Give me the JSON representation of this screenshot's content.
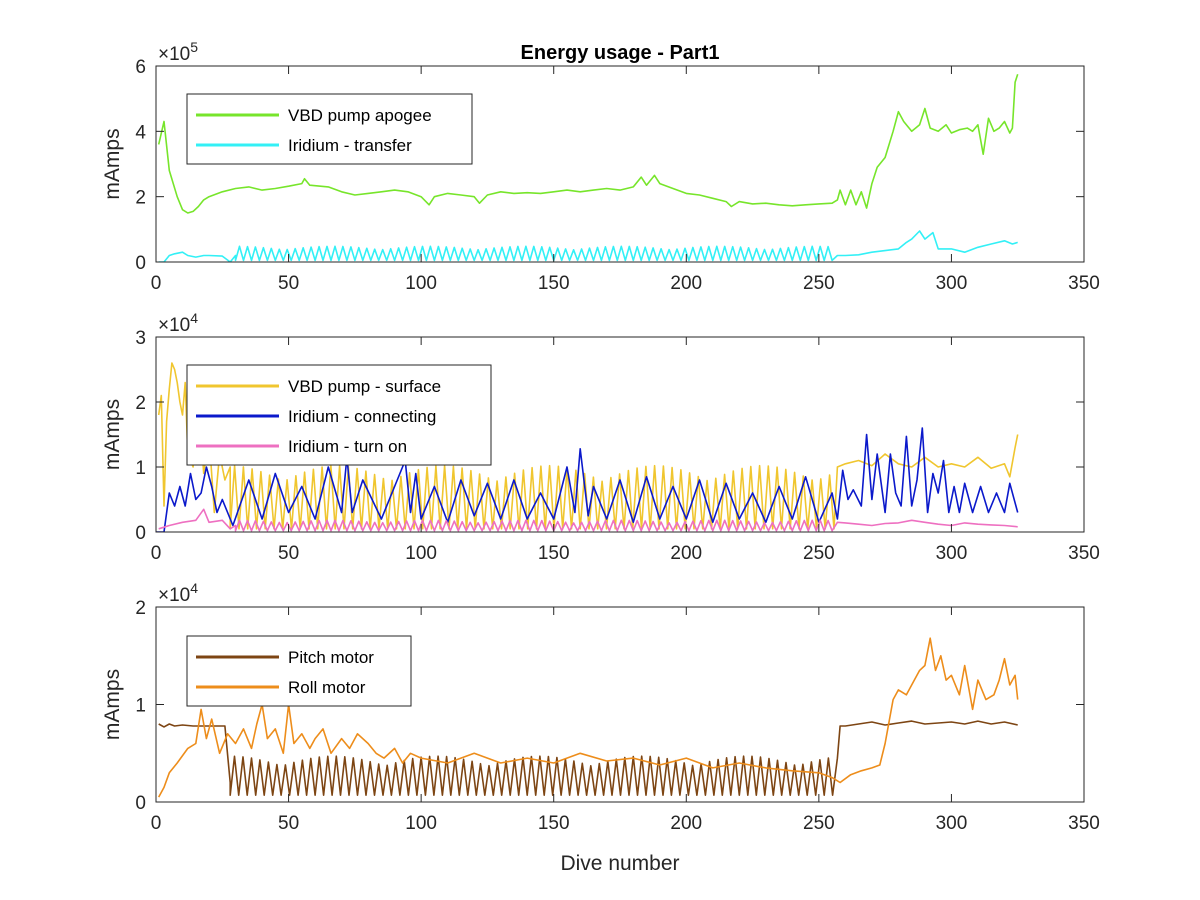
{
  "figure_title": "Energy usage - Part1",
  "chart_data": [
    {
      "type": "line",
      "id": "panel1",
      "title": "Energy usage - Part1",
      "xlabel": "",
      "ylabel": "mAmps",
      "xlim": [
        0,
        350
      ],
      "ylim": [
        0,
        600000
      ],
      "xticks": [
        0,
        50,
        100,
        150,
        200,
        250,
        300,
        350
      ],
      "yticks": [
        0,
        200000,
        400000,
        600000
      ],
      "ytick_labels": [
        "0",
        "2",
        "4",
        "6"
      ],
      "exponent_base": "×10",
      "exponent_power": "5",
      "legend_position": "top-left",
      "series": [
        {
          "name": "VBD pump apogee",
          "color": "#77e52b",
          "x": [
            1,
            3,
            5,
            8,
            10,
            12,
            14,
            16,
            18,
            20,
            25,
            30,
            35,
            40,
            45,
            50,
            55,
            56,
            58,
            65,
            70,
            75,
            80,
            85,
            90,
            95,
            100,
            103,
            105,
            110,
            115,
            120,
            122,
            125,
            130,
            135,
            140,
            145,
            150,
            155,
            160,
            165,
            170,
            175,
            180,
            183,
            185,
            188,
            190,
            195,
            200,
            205,
            210,
            215,
            217,
            220,
            225,
            230,
            235,
            240,
            245,
            250,
            255,
            257,
            258,
            260,
            262,
            264,
            266,
            268,
            270,
            272,
            275,
            278,
            280,
            282,
            285,
            288,
            290,
            292,
            295,
            298,
            300,
            303,
            306,
            308,
            310,
            312,
            314,
            316,
            318,
            320,
            322,
            323,
            324,
            325
          ],
          "y": [
            360000,
            430000,
            280000,
            200000,
            160000,
            150000,
            155000,
            170000,
            190000,
            200000,
            215000,
            225000,
            230000,
            220000,
            225000,
            232000,
            240000,
            255000,
            235000,
            230000,
            215000,
            205000,
            210000,
            215000,
            220000,
            215000,
            200000,
            175000,
            200000,
            210000,
            205000,
            200000,
            180000,
            205000,
            215000,
            210000,
            212000,
            210000,
            215000,
            220000,
            215000,
            220000,
            225000,
            220000,
            230000,
            260000,
            235000,
            265000,
            240000,
            225000,
            210000,
            205000,
            195000,
            185000,
            170000,
            185000,
            178000,
            180000,
            175000,
            172000,
            175000,
            178000,
            180000,
            190000,
            220000,
            175000,
            220000,
            175000,
            215000,
            165000,
            240000,
            290000,
            320000,
            400000,
            460000,
            430000,
            400000,
            420000,
            470000,
            410000,
            400000,
            420000,
            395000,
            405000,
            410000,
            400000,
            420000,
            330000,
            440000,
            400000,
            410000,
            430000,
            395000,
            410000,
            550000,
            575000
          ]
        },
        {
          "name": "Iridium - transfer",
          "color": "#33f0f6",
          "x": [
            1,
            3,
            5,
            7,
            10,
            12,
            15,
            18,
            20,
            25,
            28,
            30,
            257,
            260,
            265,
            270,
            275,
            280,
            283,
            285,
            288,
            290,
            293,
            295,
            300,
            305,
            310,
            315,
            320,
            323,
            325
          ],
          "y": [
            0,
            0,
            20000,
            25000,
            30000,
            20000,
            15000,
            20000,
            20000,
            18000,
            0,
            20000,
            20000,
            20000,
            22000,
            30000,
            35000,
            40000,
            60000,
            70000,
            95000,
            70000,
            90000,
            40000,
            40000,
            30000,
            45000,
            55000,
            65000,
            55000,
            60000
          ],
          "oscillation": {
            "start": 30,
            "end": 256,
            "period": 3,
            "low": 5000,
            "high": 48000
          }
        }
      ]
    },
    {
      "type": "line",
      "id": "panel2",
      "title": "",
      "xlabel": "",
      "ylabel": "mAmps",
      "xlim": [
        0,
        350
      ],
      "ylim": [
        0,
        30000
      ],
      "xticks": [
        0,
        50,
        100,
        150,
        200,
        250,
        300,
        350
      ],
      "yticks": [
        0,
        10000,
        20000,
        30000
      ],
      "ytick_labels": [
        "0",
        "1",
        "2",
        "3"
      ],
      "exponent_base": "×10",
      "exponent_power": "4",
      "legend_position": "top-left",
      "series": [
        {
          "name": "VBD pump - surface",
          "color": "#f0c62f",
          "x": [
            1,
            2,
            3,
            4,
            5,
            6,
            7,
            8,
            9,
            10,
            11,
            12,
            14,
            16,
            18,
            20,
            22,
            24,
            26,
            28,
            257,
            260,
            265,
            270,
            275,
            280,
            285,
            290,
            295,
            300,
            305,
            310,
            315,
            320,
            322,
            324,
            325
          ],
          "y": [
            18000,
            21000,
            4000,
            17000,
            22000,
            26000,
            25000,
            23000,
            20000,
            18000,
            23000,
            12000,
            10000,
            21000,
            9000,
            15000,
            3000,
            12000,
            8000,
            10000,
            10000,
            10500,
            11000,
            10200,
            12000,
            10500,
            10000,
            11500,
            10000,
            10500,
            10000,
            11500,
            9800,
            10500,
            8500,
            13000,
            15000
          ],
          "oscillation": {
            "start": 28,
            "end": 256,
            "period": 3.3,
            "low": 500,
            "high": 10200
          }
        },
        {
          "name": "Iridium - connecting",
          "color": "#0b19cb",
          "x": [
            0,
            3,
            5,
            7,
            9,
            11,
            13,
            15,
            17,
            19,
            21,
            23,
            25,
            27,
            29,
            35,
            40,
            45,
            50,
            55,
            60,
            65,
            70,
            72,
            74,
            78,
            85,
            90,
            94,
            96,
            98,
            100,
            105,
            110,
            115,
            120,
            125,
            130,
            135,
            140,
            145,
            150,
            155,
            158,
            160,
            163,
            165,
            170,
            175,
            180,
            185,
            190,
            195,
            200,
            205,
            210,
            215,
            220,
            225,
            230,
            235,
            240,
            245,
            250,
            255,
            257,
            259,
            261,
            263,
            266,
            268,
            270,
            272,
            275,
            277,
            279,
            281,
            283,
            285,
            287,
            289,
            291,
            293,
            295,
            297,
            299,
            301,
            303,
            305,
            308,
            311,
            314,
            317,
            320,
            322,
            325
          ],
          "y": [
            0,
            0,
            6000,
            4000,
            7000,
            4000,
            9000,
            5000,
            6000,
            10000,
            7000,
            3000,
            5000,
            3000,
            1000,
            8000,
            2000,
            9000,
            3000,
            7000,
            2000,
            10000,
            3000,
            11500,
            3000,
            8000,
            2000,
            7000,
            11000,
            3000,
            9000,
            2000,
            7000,
            1500,
            8000,
            2500,
            7500,
            2000,
            8000,
            2000,
            6000,
            2000,
            10000,
            3000,
            12800,
            2500,
            7000,
            2000,
            8000,
            1500,
            8500,
            2000,
            7000,
            2000,
            8000,
            1500,
            7500,
            2000,
            6000,
            1500,
            7000,
            2000,
            8500,
            1500,
            6000,
            2000,
            9500,
            5000,
            6500,
            4000,
            15000,
            5000,
            12000,
            3000,
            12000,
            6000,
            4000,
            14700,
            4000,
            8000,
            16000,
            3000,
            9000,
            6000,
            11000,
            3000,
            7000,
            3000,
            7500,
            3000,
            7000,
            3000,
            6000,
            3000,
            7500,
            3000
          ]
        },
        {
          "name": "Iridium - turn on",
          "color": "#ee70c1",
          "x": [
            1,
            5,
            10,
            15,
            18,
            20,
            25,
            28,
            30,
            257,
            260,
            265,
            270,
            275,
            280,
            285,
            290,
            295,
            300,
            305,
            310,
            315,
            320,
            325
          ],
          "y": [
            500,
            1000,
            1500,
            1800,
            3500,
            1500,
            1800,
            500,
            1000,
            1500,
            1400,
            1200,
            1000,
            1300,
            1400,
            1800,
            1500,
            1200,
            1000,
            1400,
            1200,
            1100,
            1000,
            800
          ],
          "oscillation": {
            "start": 30,
            "end": 256,
            "period": 3,
            "low": 200,
            "high": 1800
          }
        }
      ]
    },
    {
      "type": "line",
      "id": "panel3",
      "title": "",
      "xlabel": "Dive number",
      "ylabel": "mAmps",
      "xlim": [
        0,
        350
      ],
      "ylim": [
        0,
        20000
      ],
      "xticks": [
        0,
        50,
        100,
        150,
        200,
        250,
        300,
        350
      ],
      "yticks": [
        0,
        10000,
        20000
      ],
      "ytick_labels": [
        "0",
        "1",
        "2"
      ],
      "exponent_base": "×10",
      "exponent_power": "4",
      "legend_position": "top-left",
      "series": [
        {
          "name": "Pitch motor",
          "color": "#7d4513",
          "x": [
            1,
            3,
            5,
            7,
            10,
            14,
            18,
            22,
            26,
            28,
            257,
            258,
            260,
            265,
            270,
            275,
            280,
            285,
            290,
            295,
            300,
            305,
            310,
            315,
            320,
            325
          ],
          "y": [
            8000,
            7700,
            8000,
            7800,
            7900,
            7800,
            7800,
            7800,
            7800,
            2000,
            4500,
            7800,
            7800,
            8000,
            8200,
            7900,
            8100,
            8300,
            8000,
            8100,
            8200,
            8000,
            8300,
            8000,
            8200,
            7900
          ],
          "oscillation": {
            "start": 28,
            "end": 256,
            "period": 3.2,
            "low": 700,
            "high": 4700
          }
        },
        {
          "name": "Roll motor",
          "color": "#ed8d1b",
          "x": [
            1,
            3,
            5,
            8,
            12,
            15,
            17,
            19,
            21,
            24,
            27,
            30,
            33,
            36,
            38,
            40,
            42,
            45,
            48,
            50,
            52,
            55,
            58,
            60,
            63,
            66,
            70,
            73,
            76,
            80,
            83,
            86,
            90,
            93,
            96,
            100,
            110,
            120,
            130,
            140,
            150,
            160,
            170,
            180,
            190,
            200,
            210,
            220,
            230,
            240,
            250,
            255,
            258,
            262,
            266,
            270,
            273,
            275,
            278,
            280,
            283,
            286,
            288,
            290,
            292,
            294,
            296,
            298,
            300,
            303,
            305,
            308,
            310,
            313,
            316,
            318,
            320,
            322,
            324,
            325
          ],
          "y": [
            500,
            1500,
            3000,
            4000,
            5500,
            6000,
            9500,
            6500,
            8500,
            5000,
            7000,
            6000,
            7500,
            5500,
            8000,
            10000,
            6500,
            7500,
            5000,
            10000,
            6000,
            7000,
            5500,
            6500,
            7500,
            5000,
            6500,
            5500,
            7000,
            6000,
            5000,
            4500,
            5500,
            4000,
            5000,
            4500,
            4000,
            5000,
            4000,
            4500,
            4000,
            5000,
            4200,
            4500,
            3800,
            4500,
            3500,
            4000,
            3500,
            3200,
            3000,
            2500,
            2000,
            2800,
            3200,
            3500,
            3800,
            6000,
            10500,
            11500,
            11000,
            12500,
            13500,
            14000,
            16800,
            13500,
            15000,
            12500,
            13000,
            11000,
            14000,
            9500,
            12500,
            10500,
            11000,
            12500,
            14700,
            12000,
            13000,
            10500
          ]
        }
      ]
    }
  ]
}
